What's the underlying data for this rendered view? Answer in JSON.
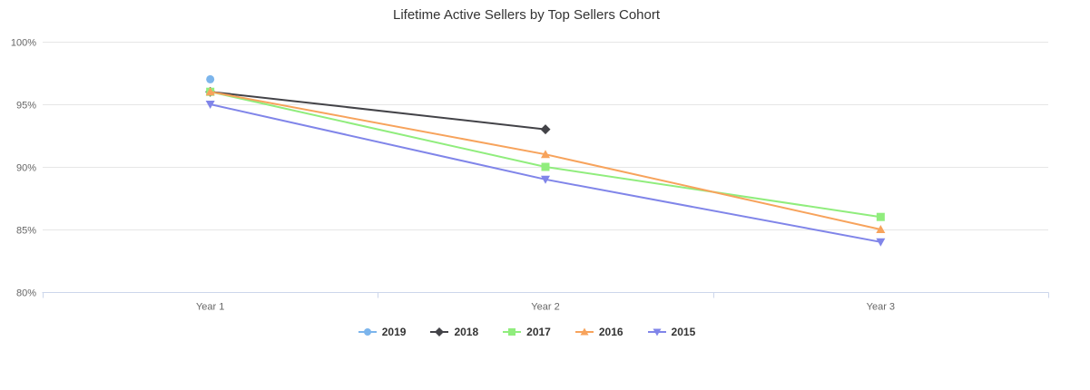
{
  "chart_data": {
    "type": "line",
    "title": "Lifetime Active Sellers by Top Sellers Cohort",
    "categories": [
      "Year 1",
      "Year 2",
      "Year 3"
    ],
    "series": [
      {
        "name": "2019",
        "color": "#7cb5ec",
        "marker": "circle",
        "values": [
          97,
          null,
          null
        ]
      },
      {
        "name": "2018",
        "color": "#434348",
        "marker": "diamond",
        "values": [
          96,
          93,
          null
        ]
      },
      {
        "name": "2017",
        "color": "#90ed7d",
        "marker": "square",
        "values": [
          96,
          90,
          86
        ]
      },
      {
        "name": "2016",
        "color": "#f7a35c",
        "marker": "triangle",
        "values": [
          96,
          91,
          85
        ]
      },
      {
        "name": "2015",
        "color": "#8085e9",
        "marker": "triangle-down",
        "values": [
          95,
          89,
          84
        ]
      }
    ],
    "xlabel": "",
    "ylabel": "",
    "ylim": [
      80,
      100
    ],
    "ytick_step": 5,
    "ytick_suffix": "%",
    "grid": true,
    "legend_position": "bottom",
    "styles": {
      "grid_color": "#e6e6e6",
      "axis_line_color": "#ccd6eb",
      "axis_label_color": "#666666",
      "title_color": "#333333",
      "legend_text_color": "#333333"
    }
  }
}
